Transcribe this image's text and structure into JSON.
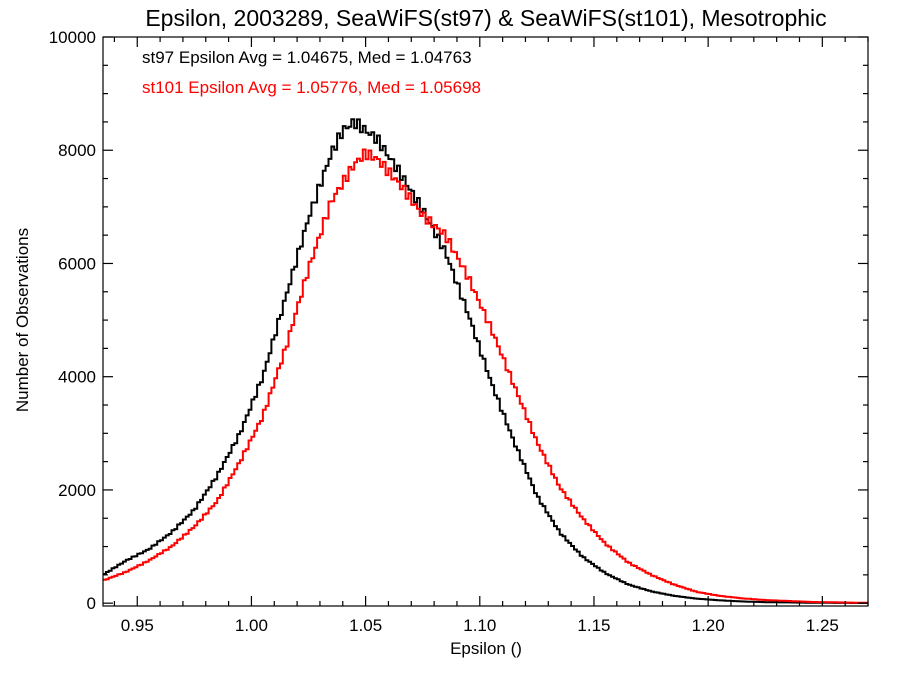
{
  "chart_data": {
    "type": "line",
    "step": true,
    "title": "Epsilon, 2003289, SeaWiFS(st97) & SeaWiFS(st101), Mesotrophic",
    "xlabel": "Epsilon ()",
    "ylabel": "Number of Observations",
    "xlim": [
      0.935,
      1.27
    ],
    "ylim": [
      -50,
      10000
    ],
    "xticks": [
      0.95,
      1.0,
      1.05,
      1.1,
      1.15,
      1.2,
      1.25
    ],
    "xtick_labels": [
      "0.95",
      "1.00",
      "1.05",
      "1.10",
      "1.15",
      "1.20",
      "1.25"
    ],
    "yticks": [
      0,
      2000,
      4000,
      6000,
      8000,
      10000
    ],
    "ytick_labels": [
      "0",
      "2000",
      "4000",
      "6000",
      "8000",
      "10000"
    ],
    "grid": false,
    "annotations": [
      {
        "text": "st97 Epsilon Avg = 1.04675, Med = 1.04763",
        "color": "#000000"
      },
      {
        "text": "st101 Epsilon Avg = 1.05776, Med = 1.05698",
        "color": "#ff0000"
      }
    ],
    "series": [
      {
        "color": "#000000",
        "x": [
          0.935,
          0.945,
          0.955,
          0.965,
          0.975,
          0.985,
          0.995,
          1.005,
          1.015,
          1.025,
          1.035,
          1.04,
          1.045,
          1.055,
          1.065,
          1.075,
          1.085,
          1.095,
          1.105,
          1.115,
          1.125,
          1.135,
          1.145,
          1.155,
          1.165,
          1.175,
          1.185,
          1.195,
          1.205,
          1.215,
          1.225,
          1.245,
          1.27
        ],
        "y": [
          500,
          750,
          950,
          1250,
          1650,
          2250,
          3000,
          4000,
          5400,
          6800,
          7950,
          8350,
          8500,
          8200,
          7600,
          6950,
          6200,
          5100,
          3900,
          2850,
          1900,
          1250,
          820,
          530,
          330,
          210,
          130,
          80,
          50,
          30,
          18,
          8,
          2
        ]
      },
      {
        "color": "#ff0000",
        "x": [
          0.935,
          0.945,
          0.955,
          0.965,
          0.975,
          0.985,
          0.995,
          1.005,
          1.015,
          1.025,
          1.035,
          1.045,
          1.05,
          1.055,
          1.065,
          1.075,
          1.085,
          1.095,
          1.105,
          1.115,
          1.125,
          1.135,
          1.145,
          1.155,
          1.165,
          1.175,
          1.185,
          1.195,
          1.205,
          1.215,
          1.225,
          1.245,
          1.27
        ],
        "y": [
          400,
          550,
          750,
          1000,
          1350,
          1800,
          2500,
          3300,
          4500,
          5900,
          7100,
          7750,
          7950,
          7850,
          7400,
          6850,
          6500,
          5750,
          4850,
          3850,
          2850,
          2050,
          1500,
          1050,
          720,
          500,
          330,
          200,
          130,
          85,
          55,
          22,
          5
        ]
      }
    ]
  }
}
